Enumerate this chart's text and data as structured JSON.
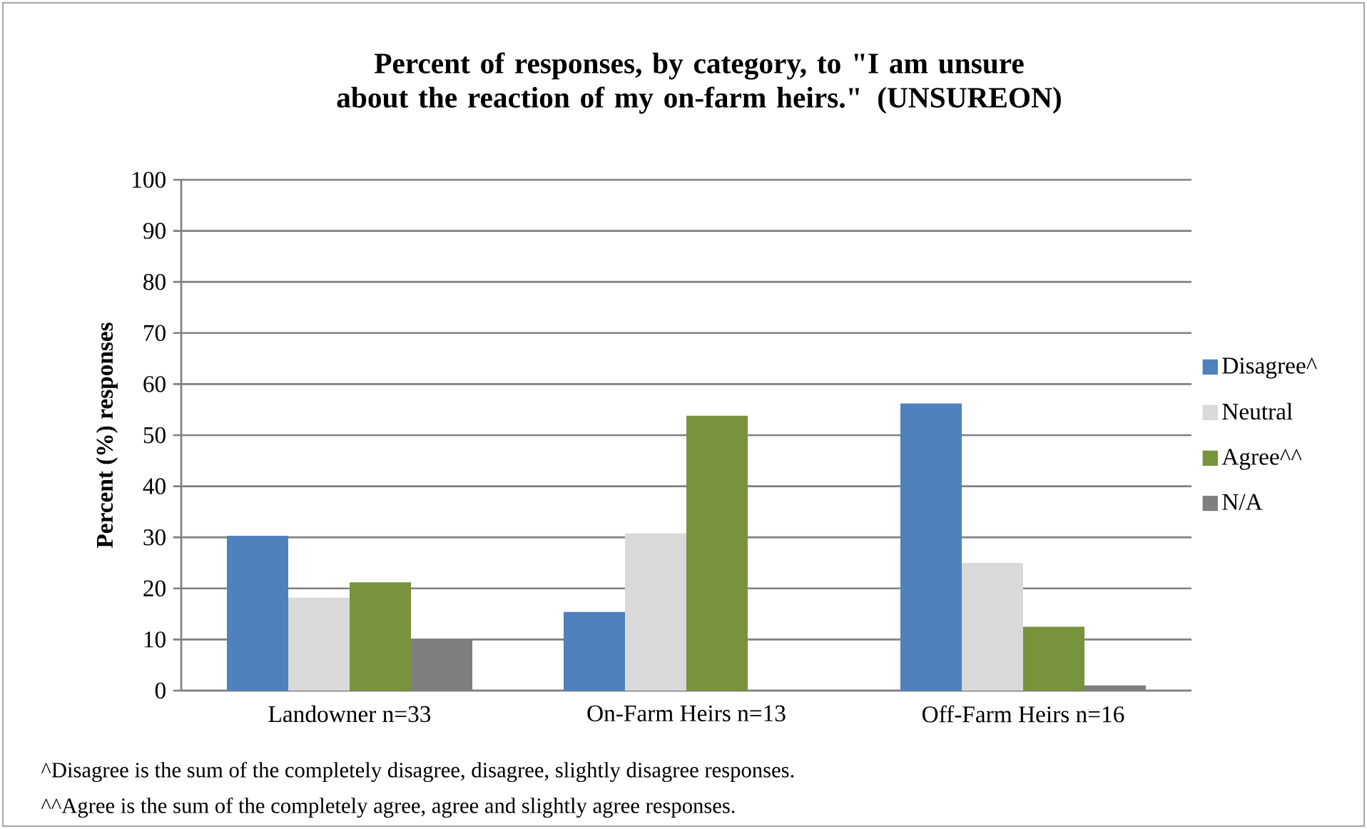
{
  "chart_data": {
    "type": "bar",
    "title": "Percent of responses, by category, to \"I am unsure about the reaction of my on-farm heirs.\" (UNSUREON)",
    "ylabel": "Percent (%) responses",
    "categories": [
      "Landowner n=33",
      "On-Farm Heirs n=13",
      "Off-Farm Heirs n=16"
    ],
    "series": [
      {
        "name": "Disagree^",
        "color": "#4f81bd",
        "values": [
          30.3,
          15.4,
          56.2
        ]
      },
      {
        "name": "Neutral",
        "color": "#d9d9d9",
        "values": [
          18.2,
          30.8,
          25.0
        ]
      },
      {
        "name": "Agree^^",
        "color": "#77933c",
        "values": [
          21.2,
          53.8,
          12.5
        ]
      },
      {
        "name": "N/A",
        "color": "#7f7f7f",
        "values": [
          10.0,
          null,
          1.0
        ]
      }
    ],
    "ylim": [
      0,
      100
    ],
    "yticks": [
      0,
      10,
      20,
      30,
      40,
      50,
      60,
      70,
      80,
      90,
      100
    ],
    "grid": "y",
    "legend": "right",
    "annotations": [
      "^Disagree is the sum of the completely disagree, disagree, slightly disagree responses.",
      "^^Agree is the sum of the completely agree, agree and slightly agree responses."
    ]
  }
}
